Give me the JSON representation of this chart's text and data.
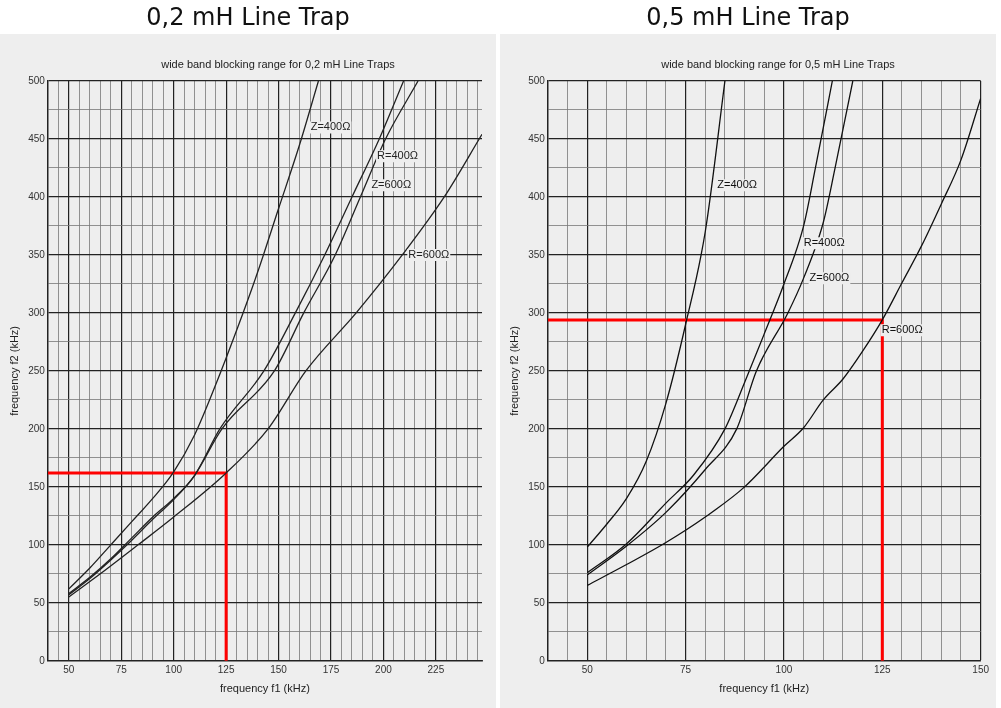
{
  "chart_data": [
    {
      "type": "line",
      "title": "0,2 mH Line Trap",
      "subtitle": "wide band blocking range for 0,2 mH Line Traps",
      "xlabel": "frequency f1 (kHz)",
      "ylabel": "frequency f2 (kHz)",
      "xlim": [
        40,
        247
      ],
      "ylim": [
        0,
        500
      ],
      "xticks": [
        {
          "value": 40,
          "label": null
        },
        {
          "value": 45,
          "label": null
        },
        50,
        {
          "value": 55,
          "label": null
        },
        {
          "value": 60,
          "label": null
        },
        {
          "value": 65,
          "label": null
        },
        {
          "value": 70,
          "label": null
        },
        75,
        {
          "value": 80,
          "label": null
        },
        {
          "value": 85,
          "label": null
        },
        {
          "value": 90,
          "label": null
        },
        {
          "value": 95,
          "label": null
        },
        100,
        {
          "value": 105,
          "label": null
        },
        {
          "value": 110,
          "label": null
        },
        {
          "value": 115,
          "label": null
        },
        {
          "value": 120,
          "label": null
        },
        125,
        {
          "value": 130,
          "label": null
        },
        {
          "value": 135,
          "label": null
        },
        {
          "value": 140,
          "label": null
        },
        {
          "value": 145,
          "label": null
        },
        150,
        {
          "value": 155,
          "label": null
        },
        {
          "value": 160,
          "label": null
        },
        {
          "value": 165,
          "label": null
        },
        {
          "value": 170,
          "label": null
        },
        175,
        {
          "value": 180,
          "label": null
        },
        {
          "value": 185,
          "label": null
        },
        {
          "value": 190,
          "label": null
        },
        {
          "value": 195,
          "label": null
        },
        200,
        {
          "value": 205,
          "label": null
        },
        {
          "value": 210,
          "label": null
        },
        {
          "value": 215,
          "label": null
        },
        {
          "value": 220,
          "label": null
        },
        225,
        {
          "value": 230,
          "label": null
        },
        {
          "value": 235,
          "label": null
        },
        {
          "value": 240,
          "label": null
        },
        {
          "value": 245,
          "label": null
        }
      ],
      "yticks": [
        0,
        {
          "value": 25,
          "label": null
        },
        50,
        {
          "value": 75,
          "label": null
        },
        100,
        {
          "value": 125,
          "label": null
        },
        150,
        {
          "value": 175,
          "label": null
        },
        200,
        {
          "value": 225,
          "label": null
        },
        250,
        {
          "value": 275,
          "label": null
        },
        300,
        {
          "value": 325,
          "label": null
        },
        350,
        {
          "value": 375,
          "label": null
        },
        400,
        {
          "value": 425,
          "label": null
        },
        450,
        {
          "value": 475,
          "label": null
        },
        500
      ],
      "grid": true,
      "marker": "none",
      "line_style": "solid",
      "series": [
        {
          "name": "Z=400Ω",
          "color": "#222222",
          "x": [
            50,
            60,
            70,
            80,
            90,
            100,
            110,
            120,
            130,
            140,
            150,
            160,
            169
          ],
          "values": [
            62,
            80,
            100,
            120,
            140,
            163,
            195,
            238,
            285,
            335,
            390,
            445,
            500
          ]
        },
        {
          "name": "R=400Ω",
          "color": "#222222",
          "x": [
            50,
            60,
            70,
            80,
            90,
            100,
            110,
            122,
            143,
            158,
            172,
            185,
            198,
            209.6
          ],
          "values": [
            58,
            72,
            88,
            106,
            124,
            140,
            160,
            200,
            250,
            300,
            350,
            400,
            450,
            500
          ]
        },
        {
          "name": "Z=600Ω",
          "color": "#222222",
          "x": [
            50,
            60,
            70,
            80,
            90,
            100,
            110,
            123,
            148,
            162,
            177,
            189,
            201,
            216.5
          ],
          "values": [
            57,
            71,
            87,
            104,
            122,
            139,
            160,
            200,
            250,
            300,
            350,
            400,
            450,
            500
          ]
        },
        {
          "name": "R=600Ω",
          "color": "#222222",
          "x": [
            50,
            65,
            83,
            100,
            125,
            145,
            163,
            187,
            209,
            229,
            247
          ],
          "values": [
            55,
            75,
            100,
            124,
            162,
            200,
            250,
            300,
            350,
            400,
            454
          ]
        },
        {
          "type": "line",
          "color": "#ff0000",
          "x": [
            40,
            125,
            125
          ],
          "values": [
            162,
            162,
            0
          ]
        }
      ],
      "legend": false
    },
    {
      "type": "line",
      "title": "0,5 mH Line Trap",
      "subtitle": "wide band blocking range for 0,5 mH Line Traps",
      "xlabel": "frequency f1 (kHz)",
      "ylabel": "frequency f2 (kHz)",
      "xlim": [
        40,
        150
      ],
      "ylim": [
        0,
        500
      ],
      "xticks": [
        {
          "value": 40,
          "label": null
        },
        {
          "value": 45,
          "label": null
        },
        50,
        {
          "value": 55,
          "label": null
        },
        {
          "value": 60,
          "label": null
        },
        {
          "value": 65,
          "label": null
        },
        {
          "value": 70,
          "label": null
        },
        75,
        {
          "value": 80,
          "label": null
        },
        {
          "value": 85,
          "label": null
        },
        {
          "value": 90,
          "label": null
        },
        {
          "value": 95,
          "label": null
        },
        100,
        {
          "value": 105,
          "label": null
        },
        {
          "value": 110,
          "label": null
        },
        {
          "value": 115,
          "label": null
        },
        {
          "value": 120,
          "label": null
        },
        125,
        {
          "value": 130,
          "label": null
        },
        {
          "value": 135,
          "label": null
        },
        {
          "value": 140,
          "label": null
        },
        {
          "value": 145,
          "label": null
        },
        150
      ],
      "yticks": [
        0,
        {
          "value": 25,
          "label": null
        },
        50,
        {
          "value": 75,
          "label": null
        },
        100,
        {
          "value": 125,
          "label": null
        },
        150,
        {
          "value": 175,
          "label": null
        },
        200,
        {
          "value": 225,
          "label": null
        },
        250,
        {
          "value": 275,
          "label": null
        },
        300,
        {
          "value": 325,
          "label": null
        },
        350,
        {
          "value": 375,
          "label": null
        },
        400,
        {
          "value": 425,
          "label": null
        },
        450,
        {
          "value": 475,
          "label": null
        },
        500
      ],
      "grid": true,
      "marker": "none",
      "line_style": "solid",
      "series": [
        {
          "name": "Z=400Ω",
          "color": "#111111",
          "x": [
            50,
            55,
            60,
            65,
            70,
            75,
            80,
            85
          ],
          "values": [
            98,
            118,
            140,
            172,
            222,
            290,
            370,
            500
          ]
        },
        {
          "name": "R=400Ω",
          "color": "#111111",
          "x": [
            50,
            60,
            70,
            77,
            85,
            90,
            95,
            100,
            105,
            108,
            112.3
          ],
          "values": [
            76,
            101,
            136,
            160,
            200,
            240,
            282,
            325,
            375,
            425,
            500
          ]
        },
        {
          "name": "Z=600Ω",
          "color": "#111111",
          "x": [
            50,
            60,
            70,
            80,
            88,
            93,
            101,
            105,
            110,
            113,
            117.5
          ],
          "values": [
            74,
            99,
            128,
            165,
            200,
            250,
            300,
            330,
            378,
            425,
            500
          ]
        },
        {
          "name": "R=600Ω",
          "color": "#111111",
          "x": [
            50,
            60,
            70,
            80,
            90,
            100,
            105,
            110,
            115,
            120,
            125,
            130,
            135,
            140,
            145,
            150
          ],
          "values": [
            65,
            83,
            102,
            124,
            150,
            185,
            201,
            225,
            243,
            267,
            294,
            326,
            358,
            394,
            432,
            485
          ]
        },
        {
          "type": "line",
          "color": "#ff0000",
          "x": [
            40,
            125,
            125
          ],
          "values": [
            294,
            294,
            0
          ]
        }
      ],
      "legend": false
    }
  ]
}
